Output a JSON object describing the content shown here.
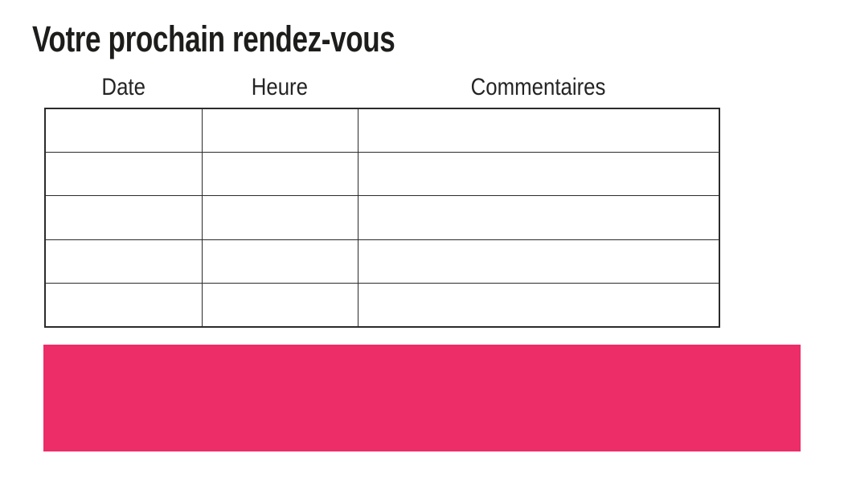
{
  "page": {
    "title": "Votre prochain rendez-vous"
  },
  "table": {
    "columns": [
      {
        "id": "date",
        "label": "Date"
      },
      {
        "id": "heure",
        "label": "Heure"
      },
      {
        "id": "commentaires",
        "label": "Commentaires"
      }
    ],
    "rows": [
      [
        "",
        "",
        ""
      ],
      [
        "",
        "",
        ""
      ],
      [
        "",
        "",
        ""
      ],
      [
        "",
        "",
        ""
      ],
      [
        "",
        "",
        ""
      ]
    ],
    "row_count": 5
  },
  "accent_bar": {
    "color": "#ED2D68"
  },
  "colors": {
    "background": "#FFFFFF",
    "title_text": "#1D1D1B",
    "header_text": "#242424",
    "table_border": "#2B2B2B",
    "accent_pink": "#ED2D68"
  }
}
